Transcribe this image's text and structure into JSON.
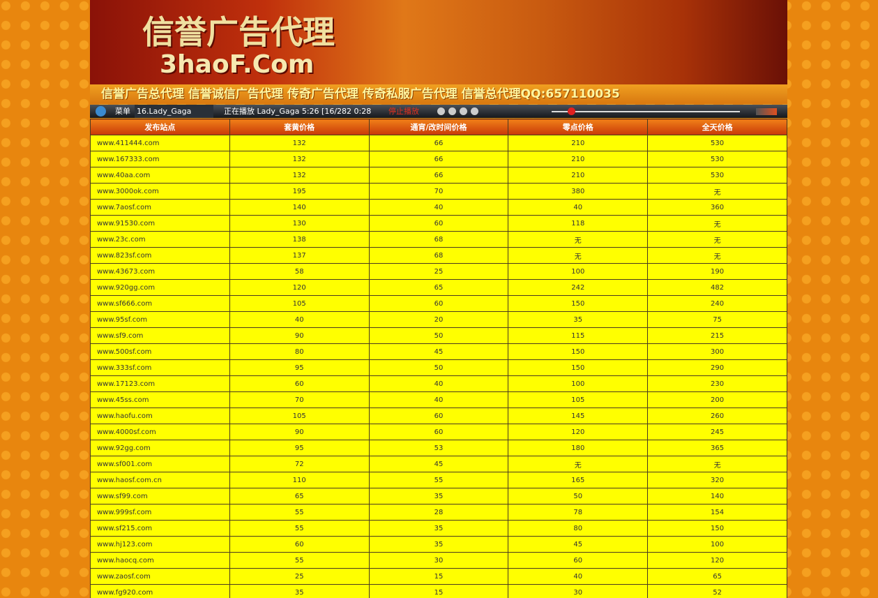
{
  "banner": {
    "title": "信誉广告代理",
    "domain": "3haoF.Com"
  },
  "nav": {
    "text": "信誉广告总代理 信誉诚信广告代理 传奇广告代理 传奇私服广告代理 信誉总代理QQ:",
    "qq": "657110035"
  },
  "player": {
    "menu": "菜单",
    "track": "16.Lady_Gaga",
    "status": "正在播放 Lady_Gaga 5:26 [16/282 0:28",
    "stop": "停止播放"
  },
  "table": {
    "header": [
      "发布站点",
      "套黄价格",
      "通宵/改时间价格",
      "零点价格",
      "全天价格"
    ],
    "rows": [
      [
        "www.411444.com",
        132,
        66,
        210,
        530
      ],
      [
        "www.167333.com",
        132,
        66,
        210,
        530
      ],
      [
        "www.40aa.com",
        132,
        66,
        210,
        530
      ],
      [
        "www.3000ok.com",
        195,
        70,
        380,
        "无"
      ],
      [
        "www.7aosf.com",
        140,
        40,
        40,
        360
      ],
      [
        "www.91530.com",
        130,
        60,
        118,
        "无"
      ],
      [
        "www.23c.com",
        138,
        68,
        "无",
        "无"
      ],
      [
        "www.823sf.com",
        137,
        68,
        "无",
        "无"
      ],
      [
        "www.43673.com",
        58,
        25,
        100,
        190
      ],
      [
        "www.920gg.com",
        120,
        65,
        242,
        482
      ],
      [
        "www.sf666.com",
        105,
        60,
        150,
        240
      ],
      [
        "www.95sf.com",
        40,
        20,
        35,
        75
      ],
      [
        "www.sf9.com",
        90,
        50,
        115,
        215
      ],
      [
        "www.500sf.com",
        80,
        45,
        150,
        300
      ],
      [
        "www.333sf.com",
        95,
        50,
        150,
        290
      ],
      [
        "www.17123.com",
        60,
        40,
        100,
        230
      ],
      [
        "www.45ss.com",
        70,
        40,
        105,
        200
      ],
      [
        "www.haofu.com",
        105,
        60,
        145,
        260
      ],
      [
        "www.4000sf.com",
        90,
        60,
        120,
        245
      ],
      [
        "www.92gg.com",
        95,
        53,
        180,
        365
      ],
      [
        "www.sf001.com",
        72,
        45,
        "无",
        "无"
      ],
      [
        "www.haosf.com.cn",
        110,
        55,
        165,
        320
      ],
      [
        "www.sf99.com",
        65,
        35,
        50,
        140
      ],
      [
        "www.999sf.com",
        55,
        28,
        78,
        154
      ],
      [
        "www.sf215.com",
        55,
        35,
        80,
        150
      ],
      [
        "www.hj123.com",
        60,
        35,
        45,
        100
      ],
      [
        "www.haocq.com",
        55,
        30,
        60,
        120
      ],
      [
        "www.zaosf.com",
        25,
        15,
        40,
        65
      ],
      [
        "www.fg920.com",
        35,
        15,
        30,
        52
      ]
    ]
  }
}
